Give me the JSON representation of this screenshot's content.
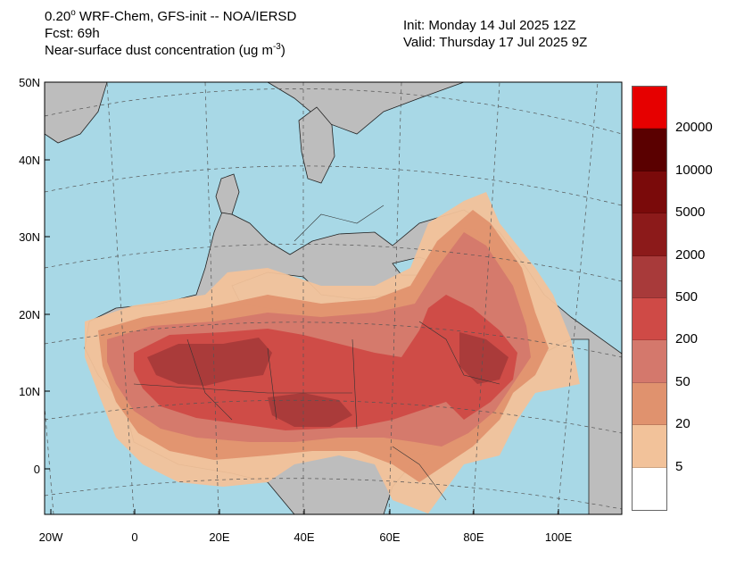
{
  "header": {
    "resolution": "0.20",
    "degree": "o",
    "model": " WRF-Chem, GFS-init -- NOA/IERSD",
    "forecast": "Fcst: 69h",
    "variable": "Near-surface dust concentration (ug m",
    "unit_exp": "-3",
    "variable_close": ")",
    "init": "Init: Monday 14 Jul 2025  12Z",
    "valid": "Valid: Thursday 17 Jul 2025  9Z"
  },
  "axes": {
    "lat_labels": [
      "50N",
      "40N",
      "30N",
      "20N",
      "10N",
      "0"
    ],
    "lon_labels": [
      "20W",
      "0",
      "20E",
      "40E",
      "60E",
      "80E",
      "100E"
    ]
  },
  "legend": {
    "labels": [
      "20000",
      "10000",
      "5000",
      "2000",
      "500",
      "200",
      "50",
      "20",
      "5"
    ],
    "colors": [
      "#e60000",
      "#5a0000",
      "#7a0a0a",
      "#8c1a1a",
      "#a83a3a",
      "#cf4a46",
      "#d4786c",
      "#e0926e",
      "#f2c29a",
      "#ffffff"
    ]
  },
  "colors": {
    "ocean": "#a8d8e6",
    "land": "#bdbdbd",
    "dust_5": "#f2c29a",
    "dust_20": "#e0926e",
    "dust_50": "#d4786c",
    "dust_200": "#cf4a46",
    "dust_500": "#a83a3a"
  }
}
